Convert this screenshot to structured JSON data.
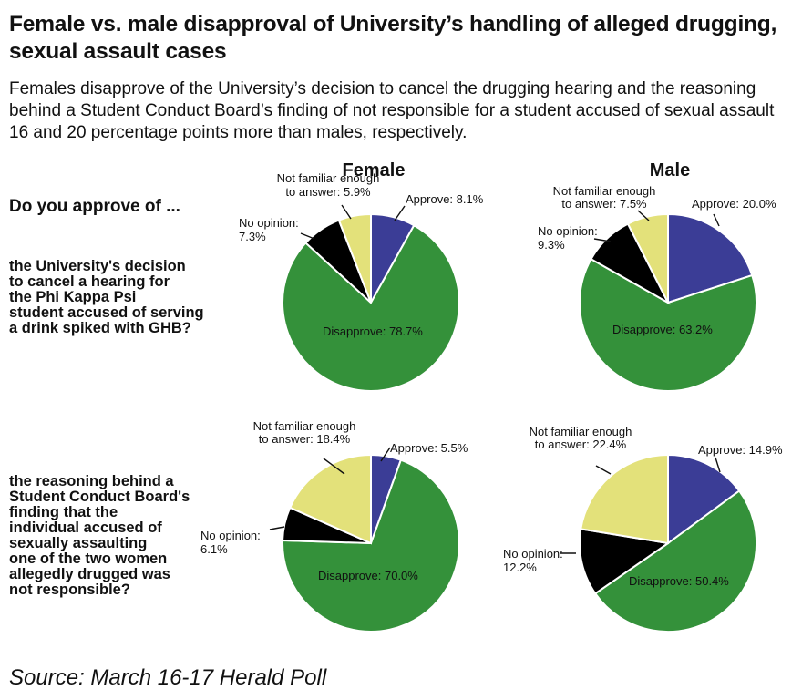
{
  "header": {
    "title": "Female vs. male disapproval of University’s handling of alleged drugging, sexual assault cases",
    "subtitle": "Females disapprove of the University’s decision to cancel the drugging hearing and the reasoning behind a Student Conduct Board’s finding of not responsible for a student accused of sexual assault 16 and 20 percentage points more than males, respectively."
  },
  "columns": {
    "female": "Female",
    "male": "Male"
  },
  "questions": {
    "prompt": "Do you approve of ...",
    "q1": "the University's decision\nto cancel a hearing for\nthe Phi Kappa Psi\nstudent accused of serving\na drink spiked with GHB?",
    "q2": "the reasoning behind a\nStudent Conduct Board's\nfinding that the\nindividual accused of\nsexually assaulting\none of the two women\nallegedly drugged was\nnot responsible?"
  },
  "source": "Source: March 16-17 Herald Poll",
  "colors": {
    "approve": "#3b3d96",
    "disapprove": "#34913a",
    "no_opinion": "#000000",
    "not_familiar": "#e3e17a"
  },
  "chart_data": [
    {
      "type": "pie",
      "group": "Female",
      "question": "q1",
      "slices": [
        {
          "key": "approve",
          "label": "Approve",
          "value": 8.1
        },
        {
          "key": "disapprove",
          "label": "Disapprove",
          "value": 78.7
        },
        {
          "key": "no_opinion",
          "label": "No opinion",
          "value": 7.3
        },
        {
          "key": "not_familiar",
          "label": "Not familiar enough to answer",
          "value": 5.9
        }
      ]
    },
    {
      "type": "pie",
      "group": "Male",
      "question": "q1",
      "slices": [
        {
          "key": "approve",
          "label": "Approve",
          "value": 20.0
        },
        {
          "key": "disapprove",
          "label": "Disapprove",
          "value": 63.2
        },
        {
          "key": "no_opinion",
          "label": "No opinion",
          "value": 9.3
        },
        {
          "key": "not_familiar",
          "label": "Not familiar enough to answer",
          "value": 7.5
        }
      ]
    },
    {
      "type": "pie",
      "group": "Female",
      "question": "q2",
      "slices": [
        {
          "key": "approve",
          "label": "Approve",
          "value": 5.5
        },
        {
          "key": "disapprove",
          "label": "Disapprove",
          "value": 70.0
        },
        {
          "key": "no_opinion",
          "label": "No opinion",
          "value": 6.1
        },
        {
          "key": "not_familiar",
          "label": "Not familiar enough to answer",
          "value": 18.4
        }
      ]
    },
    {
      "type": "pie",
      "group": "Male",
      "question": "q2",
      "slices": [
        {
          "key": "approve",
          "label": "Approve",
          "value": 14.9
        },
        {
          "key": "disapprove",
          "label": "Disapprove",
          "value": 50.4
        },
        {
          "key": "no_opinion",
          "label": "No opinion",
          "value": 12.2
        },
        {
          "key": "not_familiar",
          "label": "Not familiar enough to answer",
          "value": 22.4
        }
      ]
    }
  ]
}
